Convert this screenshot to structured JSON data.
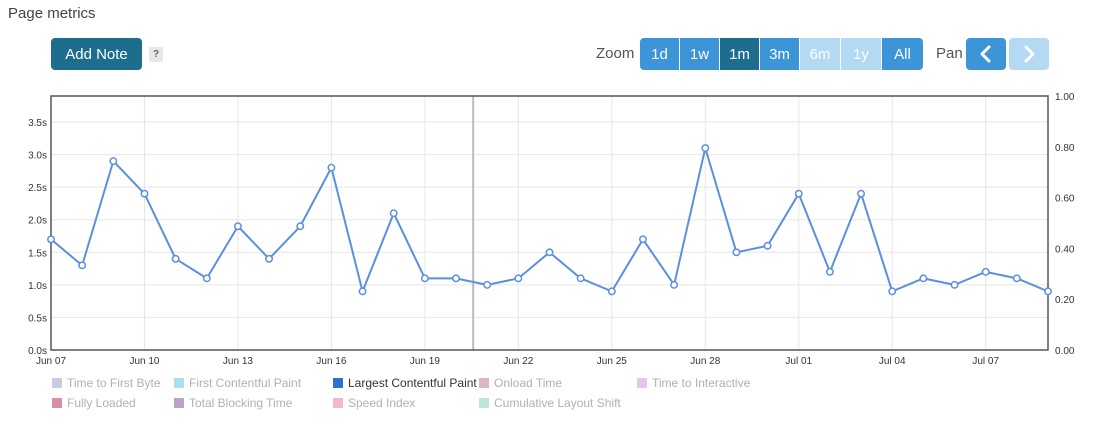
{
  "page_title": "Page metrics",
  "add_note_label": "Add Note",
  "help_label": "?",
  "zoom": {
    "label": "Zoom",
    "buttons": [
      {
        "label": "1d",
        "state": "normal"
      },
      {
        "label": "1w",
        "state": "normal"
      },
      {
        "label": "1m",
        "state": "active"
      },
      {
        "label": "3m",
        "state": "normal"
      },
      {
        "label": "6m",
        "state": "disabled"
      },
      {
        "label": "1y",
        "state": "disabled"
      },
      {
        "label": "All",
        "state": "normal"
      }
    ]
  },
  "pan": {
    "label": "Pan",
    "prev_icon": "chevron-left-icon",
    "next_icon": "chevron-right-icon"
  },
  "colors": {
    "line": "#5b8fe0",
    "frame": "#555555",
    "grid": "#e6e6e6",
    "crosshair": "#bbbbbb",
    "active_button": "#1d6e8e",
    "button": "#3b95d6",
    "disabled_button": "#b3d9f3"
  },
  "chart_data": {
    "type": "line",
    "x": [
      "Jun 07",
      "Jun 08",
      "Jun 09",
      "Jun 10",
      "Jun 11",
      "Jun 12",
      "Jun 13",
      "Jun 14",
      "Jun 15",
      "Jun 16",
      "Jun 17",
      "Jun 18",
      "Jun 19",
      "Jun 20",
      "Jun 21",
      "Jun 22",
      "Jun 23",
      "Jun 24",
      "Jun 25",
      "Jun 26",
      "Jun 27",
      "Jun 28",
      "Jun 29",
      "Jun 30",
      "Jul 01",
      "Jul 02",
      "Jul 03",
      "Jul 04",
      "Jul 05",
      "Jul 06",
      "Jul 07",
      "Jul 08",
      "Jul 09"
    ],
    "x_tick_labels": [
      "Jun 07",
      "Jun 10",
      "Jun 13",
      "Jun 16",
      "Jun 19",
      "Jun 22",
      "Jun 25",
      "Jun 28",
      "Jul 01",
      "Jul 04",
      "Jul 07"
    ],
    "series": [
      {
        "name": "Largest Contentful Paint",
        "values": [
          1.7,
          1.3,
          2.9,
          2.4,
          1.4,
          1.1,
          1.9,
          1.4,
          1.9,
          2.8,
          0.9,
          2.1,
          1.1,
          1.1,
          1.0,
          1.1,
          1.5,
          1.1,
          0.9,
          1.7,
          1.0,
          3.1,
          1.5,
          1.6,
          2.4,
          1.2,
          2.4,
          0.9,
          1.1,
          1.0,
          1.2,
          1.1,
          0.9
        ]
      }
    ],
    "ylim": [
      0,
      3.9
    ],
    "y_ticks": [
      "0.0s",
      "0.5s",
      "1.0s",
      "1.5s",
      "2.0s",
      "2.5s",
      "3.0s",
      "3.5s"
    ],
    "y2_ticks": [
      "0.00",
      "0.20",
      "0.40",
      "0.60",
      "0.80",
      "1.00"
    ],
    "y2lim": [
      0,
      1.0
    ],
    "crosshair_x": "Jun 21",
    "grid": true,
    "legend": [
      {
        "name": "Time to First Byte",
        "color": "#c7cbe3",
        "enabled": false
      },
      {
        "name": "First Contentful Paint",
        "color": "#a9dff0",
        "enabled": false
      },
      {
        "name": "Largest Contentful Paint",
        "color": "#2f6fd6",
        "enabled": true
      },
      {
        "name": "Onload Time",
        "color": "#dcb7c5",
        "enabled": false
      },
      {
        "name": "Time to Interactive",
        "color": "#e2c6f0",
        "enabled": false
      },
      {
        "name": "Fully Loaded",
        "color": "#d98fa8",
        "enabled": false
      },
      {
        "name": "Total Blocking Time",
        "color": "#b9a3c9",
        "enabled": false
      },
      {
        "name": "Speed Index",
        "color": "#f5b7cf",
        "enabled": false
      },
      {
        "name": "Cumulative Layout Shift",
        "color": "#bfe5d6",
        "enabled": false
      }
    ],
    "legend_position": "bottom"
  }
}
